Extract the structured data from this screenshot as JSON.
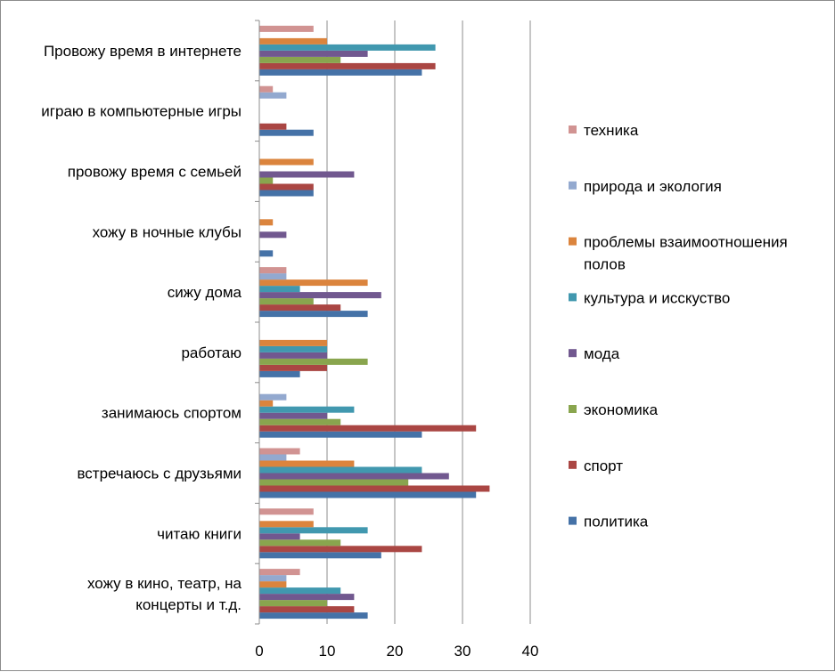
{
  "chart_data": {
    "type": "bar",
    "orientation": "horizontal",
    "categories": [
      [
        "хожу в кино, театр, на",
        "концерты  и т.д."
      ],
      [
        "читаю книги"
      ],
      [
        "встречаюсь с друзьями"
      ],
      [
        "занимаюсь спортом"
      ],
      [
        "работаю"
      ],
      [
        "сижу дома"
      ],
      [
        "хожу в ночные клубы"
      ],
      [
        "провожу время с семьей"
      ],
      [
        "играю в компьютерные игры"
      ],
      [
        "Провожу время в интернете"
      ]
    ],
    "series": [
      {
        "name": "политика",
        "color": "#4572A7",
        "values": [
          16,
          18,
          32,
          24,
          6,
          16,
          2,
          8,
          8,
          24
        ]
      },
      {
        "name": "спорт",
        "color": "#AA4643",
        "values": [
          14,
          24,
          34,
          32,
          10,
          12,
          0,
          8,
          4,
          26
        ]
      },
      {
        "name": "экономика",
        "color": "#89A54E",
        "values": [
          10,
          12,
          22,
          12,
          16,
          8,
          0,
          2,
          0,
          12
        ]
      },
      {
        "name": "мода",
        "color": "#71588F",
        "values": [
          14,
          6,
          28,
          10,
          10,
          18,
          4,
          14,
          0,
          16
        ]
      },
      {
        "name": "культура и исскуство",
        "color": "#4198AF",
        "values": [
          12,
          16,
          24,
          14,
          10,
          6,
          0,
          0,
          0,
          26
        ]
      },
      {
        "name": "проблемы взаимоотношения полов",
        "legend_lines": [
          "проблемы взаимоотношения",
          "полов"
        ],
        "color": "#DB843D",
        "values": [
          4,
          8,
          14,
          2,
          10,
          16,
          2,
          8,
          0,
          10
        ]
      },
      {
        "name": "природа и экология",
        "color": "#93A9CF",
        "values": [
          4,
          0,
          4,
          4,
          0,
          4,
          0,
          0,
          4,
          0
        ]
      },
      {
        "name": "техника",
        "color": "#D19392",
        "values": [
          6,
          8,
          6,
          0,
          0,
          4,
          0,
          0,
          2,
          8
        ]
      }
    ],
    "xlim": [
      0,
      40
    ],
    "x_ticks": [
      "0",
      "10",
      "20",
      "30",
      "40"
    ],
    "grid": "vertical",
    "legend": "right",
    "title": "",
    "xlabel": "",
    "ylabel": ""
  }
}
